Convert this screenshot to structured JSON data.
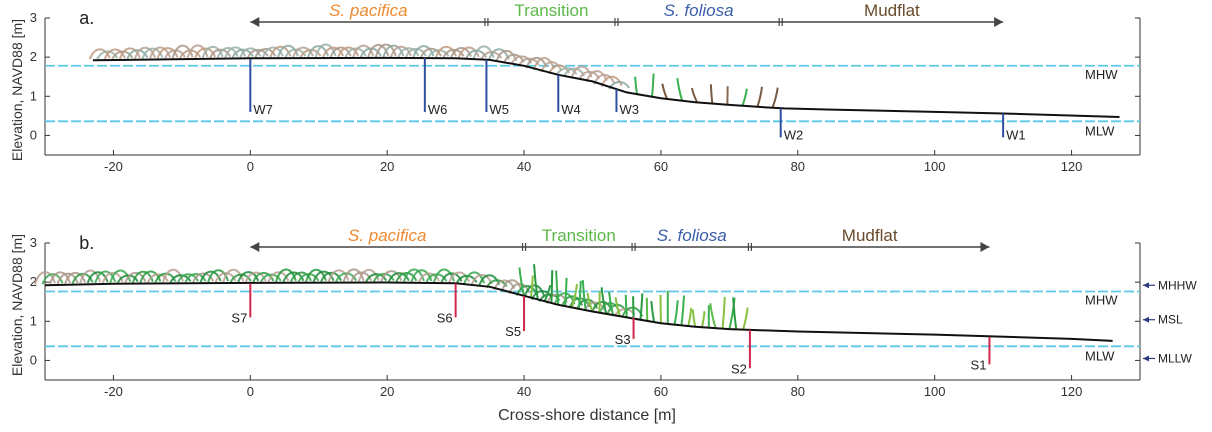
{
  "ylabel_text": "Elevation, NAVD88 [m]",
  "xlabel_text": "Cross-shore distance [m]",
  "colors": {
    "profile": "#111111",
    "tide_line": "#5ec8e8",
    "well": "#2e4fa0",
    "sensor": "#d0284a",
    "pacifica": "#f08a30",
    "transition": "#5cb848",
    "foliosa": "#3a5ea8",
    "mudflat": "#6a4a2a",
    "arrow": "#444444",
    "datum_arrow": "#2a3a80"
  },
  "chart_data": [
    {
      "type": "line",
      "panel_label": "a.",
      "xlim": [
        -30,
        130
      ],
      "ylim": [
        -0.5,
        3
      ],
      "x_ticks": [
        -20,
        0,
        20,
        40,
        60,
        80,
        100,
        120
      ],
      "y_ticks": [
        0,
        1,
        2,
        3
      ],
      "profile": {
        "x": [
          -23,
          0,
          20,
          30,
          35,
          40,
          45,
          50,
          55,
          60,
          65,
          70,
          75,
          78,
          85,
          100,
          110,
          127
        ],
        "y": [
          1.92,
          1.97,
          1.98,
          1.97,
          1.93,
          1.78,
          1.55,
          1.38,
          1.1,
          0.95,
          0.85,
          0.78,
          0.72,
          0.69,
          0.66,
          0.6,
          0.56,
          0.47
        ]
      },
      "tide_levels": [
        {
          "label": "MHW",
          "y": 1.78
        },
        {
          "label": "MLW",
          "y": 0.36
        }
      ],
      "zones": [
        {
          "label": "S. pacifica",
          "italic": true,
          "x_start": 0,
          "x_end": 34.5,
          "color_key": "pacifica"
        },
        {
          "label": "Transition",
          "italic": false,
          "x_start": 34.5,
          "x_end": 53.5,
          "color_key": "transition"
        },
        {
          "label": "S. foliosa",
          "italic": true,
          "x_start": 53.5,
          "x_end": 77.5,
          "color_key": "foliosa"
        },
        {
          "label": "Mudflat",
          "italic": false,
          "x_start": 77.5,
          "x_end": 110,
          "color_key": "mudflat"
        }
      ],
      "stations": [
        {
          "label": "W7",
          "x": 0,
          "y_top": 1.95,
          "y_bottom": 0.6
        },
        {
          "label": "W6",
          "x": 25.5,
          "y_top": 1.98,
          "y_bottom": 0.6
        },
        {
          "label": "W5",
          "x": 34.5,
          "y_top": 1.93,
          "y_bottom": 0.6
        },
        {
          "label": "W4",
          "x": 45,
          "y_top": 1.55,
          "y_bottom": 0.6
        },
        {
          "label": "W3",
          "x": 53.5,
          "y_top": 1.18,
          "y_bottom": 0.6
        },
        {
          "label": "W2",
          "x": 77.5,
          "y_top": 0.69,
          "y_bottom": -0.05
        },
        {
          "label": "W1",
          "x": 110,
          "y_top": 0.56,
          "y_bottom": -0.05
        }
      ]
    },
    {
      "type": "line",
      "panel_label": "b.",
      "xlim": [
        -30,
        130
      ],
      "ylim": [
        -0.5,
        3
      ],
      "x_ticks": [
        -20,
        0,
        20,
        40,
        60,
        80,
        100,
        120
      ],
      "y_ticks": [
        0,
        1,
        2,
        3
      ],
      "profile": {
        "x": [
          -30,
          -20,
          0,
          20,
          30,
          35,
          40,
          45,
          50,
          55,
          60,
          65,
          70,
          73,
          80,
          100,
          120,
          126
        ],
        "y": [
          1.92,
          1.96,
          1.98,
          1.99,
          1.97,
          1.88,
          1.65,
          1.42,
          1.25,
          1.1,
          0.95,
          0.86,
          0.8,
          0.78,
          0.74,
          0.66,
          0.55,
          0.5
        ]
      },
      "tide_levels": [
        {
          "label": "MHW",
          "y": 1.76
        },
        {
          "label": "MLW",
          "y": 0.36
        }
      ],
      "datums": [
        {
          "label": "MHHW",
          "y": 1.92
        },
        {
          "label": "MSL",
          "y": 1.04
        },
        {
          "label": "MLLW",
          "y": 0.05
        }
      ],
      "zones": [
        {
          "label": "S. pacifica",
          "italic": true,
          "x_start": 0,
          "x_end": 40,
          "color_key": "pacifica"
        },
        {
          "label": "Transition",
          "italic": false,
          "x_start": 40,
          "x_end": 56,
          "color_key": "transition"
        },
        {
          "label": "S. foliosa",
          "italic": true,
          "x_start": 56,
          "x_end": 73,
          "color_key": "foliosa"
        },
        {
          "label": "Mudflat",
          "italic": false,
          "x_start": 73,
          "x_end": 108,
          "color_key": "mudflat"
        }
      ],
      "stations": [
        {
          "label": "S7",
          "x": 0,
          "y_top": 1.97,
          "y_bottom": 1.1
        },
        {
          "label": "S6",
          "x": 30,
          "y_top": 1.97,
          "y_bottom": 1.1
        },
        {
          "label": "S5",
          "x": 40,
          "y_top": 1.65,
          "y_bottom": 0.75
        },
        {
          "label": "S3",
          "x": 56,
          "y_top": 1.1,
          "y_bottom": 0.55
        },
        {
          "label": "S2",
          "x": 73,
          "y_top": 0.78,
          "y_bottom": -0.2
        },
        {
          "label": "S1",
          "x": 108,
          "y_top": 0.6,
          "y_bottom": -0.1
        }
      ]
    }
  ]
}
